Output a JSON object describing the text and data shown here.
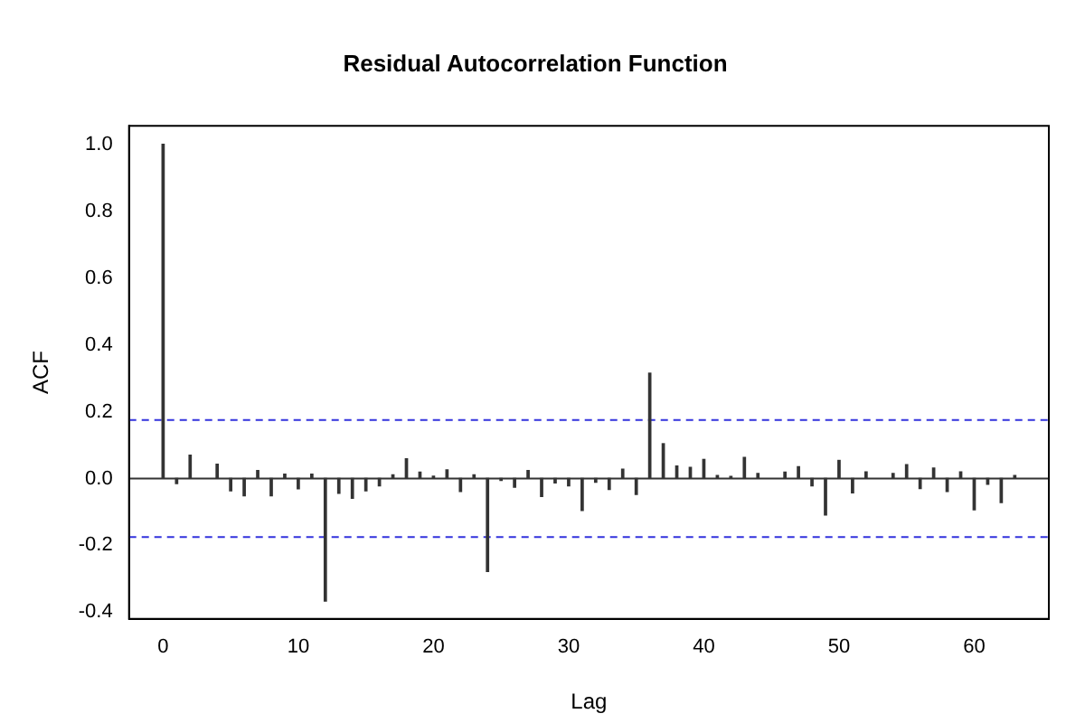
{
  "chart_data": {
    "type": "bar",
    "title": "Residual Autocorrelation Function",
    "xlabel": "Lag",
    "ylabel": "ACF",
    "x": [
      0,
      1,
      2,
      3,
      4,
      5,
      6,
      7,
      8,
      9,
      10,
      11,
      12,
      13,
      14,
      15,
      16,
      17,
      18,
      19,
      20,
      21,
      22,
      23,
      24,
      25,
      26,
      27,
      28,
      29,
      30,
      31,
      32,
      33,
      34,
      35,
      36,
      37,
      38,
      39,
      40,
      41,
      42,
      43,
      44,
      45,
      46,
      47,
      48,
      49,
      50,
      51,
      52,
      53,
      54,
      55,
      56,
      57,
      58,
      59,
      60,
      61,
      62,
      63
    ],
    "values": [
      1.0,
      -0.015,
      0.07,
      null,
      0.043,
      -0.037,
      -0.052,
      0.024,
      -0.052,
      0.013,
      -0.031,
      0.013,
      -0.367,
      -0.044,
      -0.059,
      -0.037,
      -0.022,
      0.011,
      0.059,
      0.019,
      0.007,
      0.026,
      -0.039,
      0.011,
      -0.278,
      -0.006,
      -0.026,
      0.024,
      -0.054,
      -0.013,
      -0.022,
      -0.096,
      -0.011,
      -0.033,
      0.028,
      -0.048,
      0.315,
      0.104,
      0.037,
      0.033,
      0.057,
      0.009,
      0.006,
      0.063,
      0.015,
      null,
      0.019,
      0.035,
      -0.022,
      -0.109,
      0.054,
      -0.043,
      0.02,
      null,
      0.015,
      0.041,
      -0.03,
      0.031,
      -0.039,
      0.02,
      -0.094,
      -0.017,
      -0.072,
      0.009
    ],
    "color": "#333333",
    "xlim": [
      -2.52,
      65.52
    ],
    "xticks": [
      0,
      10,
      20,
      30,
      40,
      50,
      60
    ],
    "ylim": [
      -0.42,
      1.055
    ],
    "yticks": [
      -0.4,
      -0.2,
      {
        "value": 0,
        "label": "0.0"
      },
      0.2,
      0.4,
      0.6,
      0.8,
      {
        "value": 1,
        "label": "1.0"
      }
    ],
    "ref_lines": [
      {
        "axis": "y",
        "value": 0,
        "color": "#333333",
        "line_style": "solid"
      },
      {
        "axis": "y",
        "value": 0.175,
        "color": "#3333dd",
        "line_style": "dashed"
      },
      {
        "axis": "y",
        "value": -0.175,
        "color": "#3333dd",
        "line_style": "dashed"
      }
    ],
    "grid": false,
    "legend": false
  }
}
